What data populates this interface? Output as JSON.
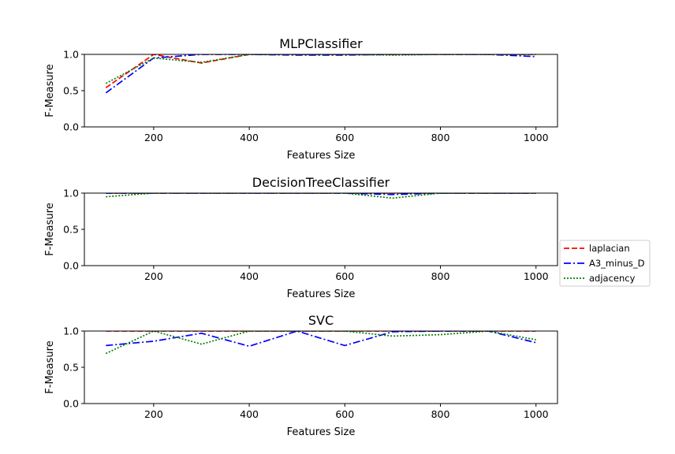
{
  "chart_data": [
    {
      "type": "line",
      "title": "MLPClassifier",
      "xlabel": "Features Size",
      "ylabel": "F-Measure",
      "xlim": [
        55,
        1045
      ],
      "ylim": [
        0,
        1
      ],
      "xticks": [
        "200",
        "400",
        "600",
        "800",
        "1000"
      ],
      "yticks": [
        "0.0",
        "0.5",
        "1.0"
      ],
      "grid": false,
      "x": [
        100,
        200,
        300,
        400,
        500,
        600,
        700,
        800,
        900,
        1000
      ],
      "series": [
        {
          "name": "laplacian",
          "values": [
            0.54,
            1.0,
            0.88,
            1.0,
            1.0,
            1.0,
            1.0,
            1.0,
            1.0,
            1.0
          ]
        },
        {
          "name": "A3_minus_D",
          "values": [
            0.47,
            0.95,
            1.0,
            1.0,
            0.99,
            0.99,
            1.0,
            1.0,
            1.0,
            0.97
          ]
        },
        {
          "name": "adjacency",
          "values": [
            0.6,
            0.95,
            0.89,
            1.0,
            1.0,
            1.0,
            0.99,
            1.0,
            1.0,
            1.0
          ]
        }
      ]
    },
    {
      "type": "line",
      "title": "DecisionTreeClassifier",
      "xlabel": "Features Size",
      "ylabel": "F-Measure",
      "xlim": [
        55,
        1045
      ],
      "ylim": [
        0,
        1
      ],
      "xticks": [
        "200",
        "400",
        "600",
        "800",
        "1000"
      ],
      "yticks": [
        "0.0",
        "0.5",
        "1.0"
      ],
      "grid": false,
      "x": [
        100,
        200,
        300,
        400,
        500,
        600,
        700,
        800,
        900,
        1000
      ],
      "series": [
        {
          "name": "laplacian",
          "values": [
            1.0,
            1.0,
            1.0,
            1.0,
            1.0,
            1.0,
            1.0,
            1.0,
            1.0,
            1.0
          ]
        },
        {
          "name": "A3_minus_D",
          "values": [
            1.0,
            1.0,
            1.0,
            1.0,
            1.0,
            1.0,
            0.98,
            1.0,
            1.0,
            1.0
          ]
        },
        {
          "name": "adjacency",
          "values": [
            0.95,
            1.0,
            1.0,
            1.0,
            1.0,
            1.0,
            0.93,
            1.0,
            1.0,
            1.0
          ]
        }
      ]
    },
    {
      "type": "line",
      "title": "SVC",
      "xlabel": "Features Size",
      "ylabel": "F-Measure",
      "xlim": [
        55,
        1045
      ],
      "ylim": [
        0,
        1
      ],
      "xticks": [
        "200",
        "400",
        "600",
        "800",
        "1000"
      ],
      "yticks": [
        "0.0",
        "0.5",
        "1.0"
      ],
      "grid": false,
      "x": [
        100,
        200,
        300,
        400,
        500,
        600,
        700,
        800,
        900,
        1000
      ],
      "series": [
        {
          "name": "laplacian",
          "values": [
            1.0,
            1.0,
            1.0,
            1.0,
            1.0,
            1.0,
            1.0,
            1.0,
            1.0,
            1.0
          ]
        },
        {
          "name": "A3_minus_D",
          "values": [
            0.8,
            0.86,
            0.97,
            0.79,
            1.0,
            0.8,
            0.99,
            1.0,
            1.0,
            0.84
          ]
        },
        {
          "name": "adjacency",
          "values": [
            0.69,
            1.0,
            0.82,
            1.0,
            1.0,
            1.0,
            0.93,
            0.95,
            1.0,
            0.88
          ]
        }
      ]
    }
  ],
  "legend": {
    "placement": "right",
    "entries": [
      {
        "label": "laplacian",
        "color": "#ff0000",
        "style": "dashed"
      },
      {
        "label": "A3_minus_D",
        "color": "#0000ff",
        "style": "dashdot"
      },
      {
        "label": "adjacency",
        "color": "#008000",
        "style": "dotted"
      }
    ]
  }
}
